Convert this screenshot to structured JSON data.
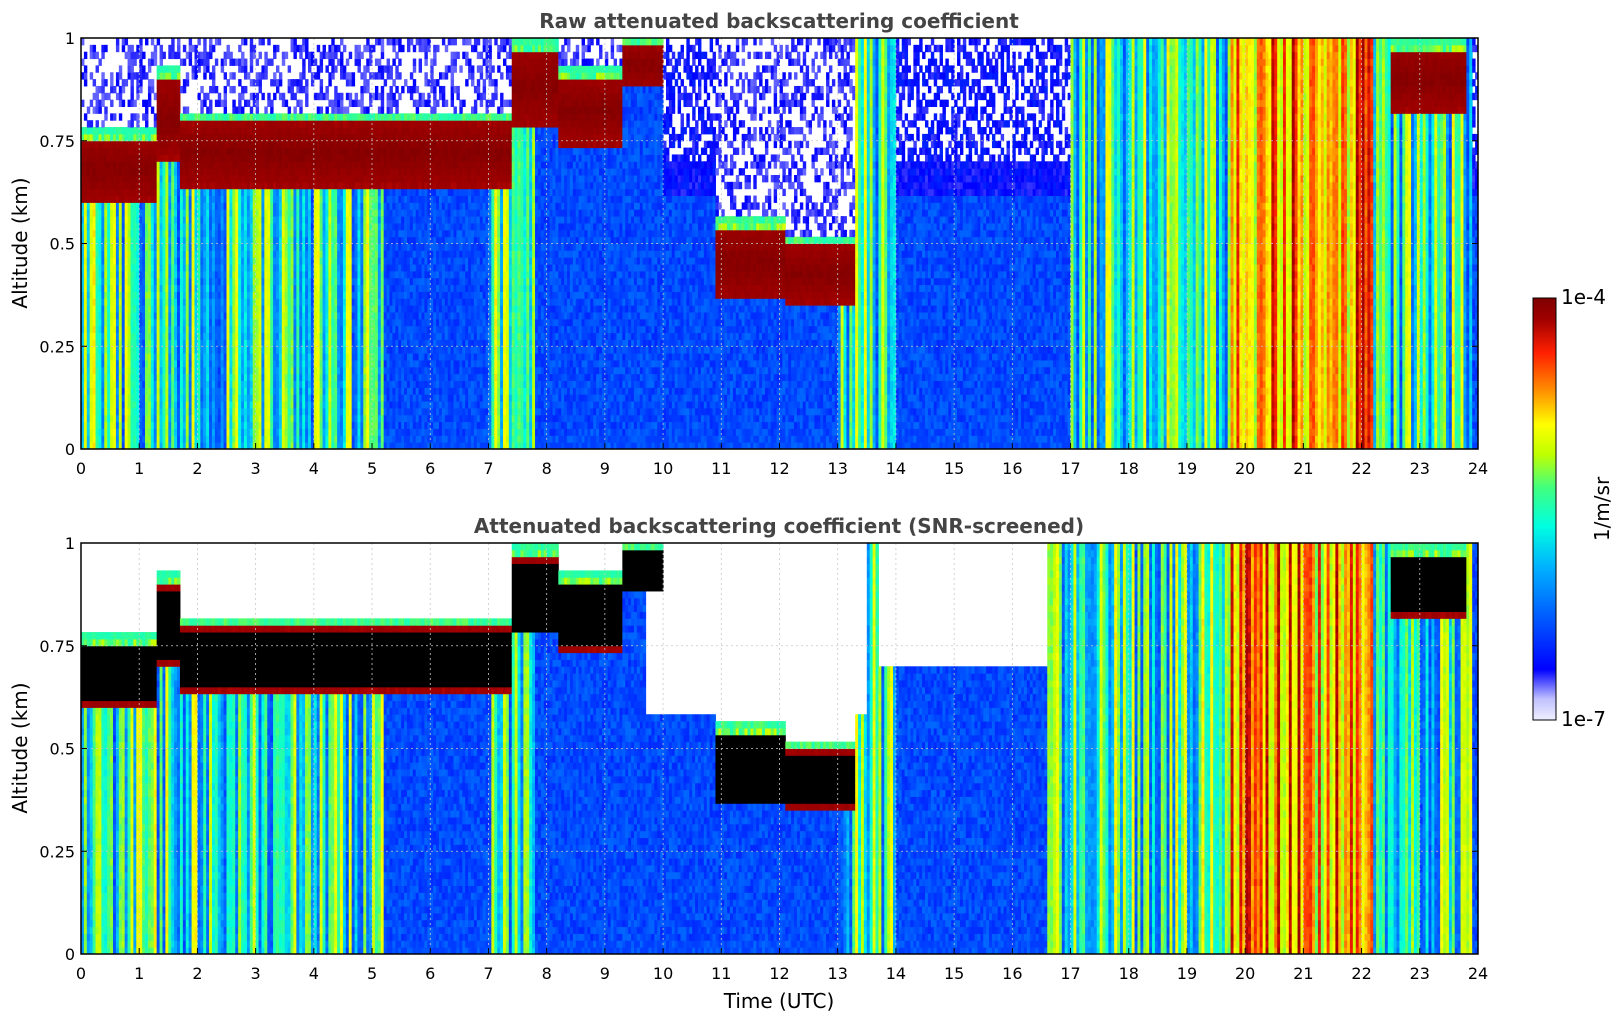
{
  "figure": {
    "colorbar": {
      "label": "1/m/sr",
      "max_label": "1e-4",
      "min_label": "1e-7",
      "scale": "log",
      "range": [
        1e-07,
        0.0001
      ],
      "colormap": [
        "#f0f0ff",
        "#c0c0ff",
        "#0000ff",
        "#0060ff",
        "#00b0ff",
        "#00ffe0",
        "#40ff80",
        "#c0ff00",
        "#ffff00",
        "#ff9000",
        "#ff2000",
        "#a00000",
        "#800000"
      ]
    }
  },
  "chart_data": [
    {
      "type": "heatmap",
      "title": "Raw attenuated backscattering coefficient",
      "xlabel": "",
      "ylabel": "Altitude (km)",
      "xlim": [
        0,
        24
      ],
      "ylim": [
        0,
        1
      ],
      "x_ticks": [
        "0",
        "1",
        "2",
        "3",
        "4",
        "5",
        "6",
        "7",
        "8",
        "9",
        "10",
        "11",
        "12",
        "13",
        "14",
        "15",
        "16",
        "17",
        "18",
        "19",
        "20",
        "21",
        "22",
        "23",
        "24"
      ],
      "y_ticks": [
        "0",
        "0.25",
        "0.5",
        "0.75",
        "1"
      ],
      "grid": true,
      "noise_above_layer": true,
      "black_saturation": false,
      "cloud_layers": [
        {
          "start": 0.0,
          "end": 1.3,
          "base_km": 0.6,
          "top_km": 0.78
        },
        {
          "start": 1.3,
          "end": 1.7,
          "base_km": 0.7,
          "top_km": 0.93
        },
        {
          "start": 1.7,
          "end": 7.4,
          "base_km": 0.64,
          "top_km": 0.82
        },
        {
          "start": 7.4,
          "end": 8.2,
          "base_km": 0.78,
          "top_km": 1.0
        },
        {
          "start": 8.2,
          "end": 9.3,
          "base_km": 0.74,
          "top_km": 0.93
        },
        {
          "start": 9.3,
          "end": 10.0,
          "base_km": 0.88,
          "top_km": 1.0
        },
        {
          "start": 10.9,
          "end": 12.1,
          "base_km": 0.36,
          "top_km": 0.57
        },
        {
          "start": 12.1,
          "end": 13.3,
          "base_km": 0.35,
          "top_km": 0.52
        },
        {
          "start": 22.5,
          "end": 23.8,
          "base_km": 0.82,
          "top_km": 1.0
        }
      ],
      "precip_intervals": [
        [
          0.0,
          5.2
        ],
        [
          7.0,
          7.8
        ],
        [
          13.0,
          14.0
        ],
        [
          17.0,
          19.2
        ],
        [
          19.2,
          23.9
        ]
      ],
      "intense_intervals": [
        [
          19.7,
          22.2
        ]
      ]
    },
    {
      "type": "heatmap",
      "title": "Attenuated backscattering coefficient (SNR-screened)",
      "xlabel": "Time (UTC)",
      "ylabel": "Altitude (km)",
      "xlim": [
        0,
        24
      ],
      "ylim": [
        0,
        1
      ],
      "x_ticks": [
        "0",
        "1",
        "2",
        "3",
        "4",
        "5",
        "6",
        "7",
        "8",
        "9",
        "10",
        "11",
        "12",
        "13",
        "14",
        "15",
        "16",
        "17",
        "18",
        "19",
        "20",
        "21",
        "22",
        "23",
        "24"
      ],
      "y_ticks": [
        "0",
        "0.25",
        "0.5",
        "0.75",
        "1"
      ],
      "grid": true,
      "noise_above_layer": false,
      "black_saturation": true,
      "cloud_layers": [
        {
          "start": 0.0,
          "end": 1.3,
          "base_km": 0.6,
          "top_km": 0.78
        },
        {
          "start": 1.3,
          "end": 1.7,
          "base_km": 0.7,
          "top_km": 0.93
        },
        {
          "start": 1.7,
          "end": 7.4,
          "base_km": 0.64,
          "top_km": 0.82
        },
        {
          "start": 7.4,
          "end": 8.2,
          "base_km": 0.78,
          "top_km": 1.0
        },
        {
          "start": 8.2,
          "end": 9.3,
          "base_km": 0.74,
          "top_km": 0.93
        },
        {
          "start": 9.3,
          "end": 10.0,
          "base_km": 0.88,
          "top_km": 1.0
        },
        {
          "start": 10.9,
          "end": 12.1,
          "base_km": 0.36,
          "top_km": 0.57
        },
        {
          "start": 12.1,
          "end": 13.3,
          "base_km": 0.35,
          "top_km": 0.52
        },
        {
          "start": 22.5,
          "end": 23.8,
          "base_km": 0.82,
          "top_km": 1.0
        }
      ],
      "precip_intervals": [
        [
          0.0,
          5.2
        ],
        [
          7.0,
          7.8
        ],
        [
          13.0,
          14.0
        ],
        [
          16.6,
          19.2
        ],
        [
          19.2,
          23.9
        ]
      ],
      "intense_intervals": [
        [
          19.7,
          22.2
        ]
      ],
      "masked_regions": [
        {
          "start": 9.7,
          "end": 13.5,
          "base_km": 0.58,
          "top_km": 1.0
        },
        {
          "start": 13.7,
          "end": 16.6,
          "base_km": 0.7,
          "top_km": 1.0
        }
      ]
    }
  ]
}
